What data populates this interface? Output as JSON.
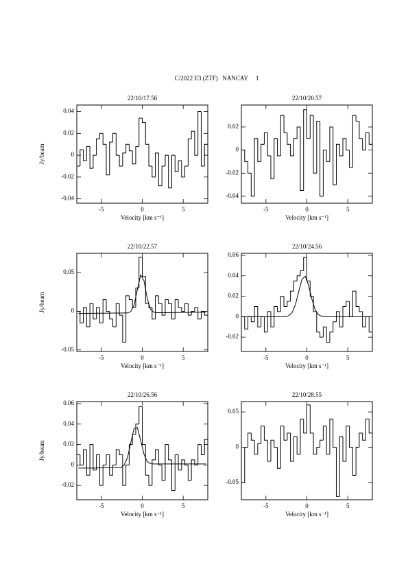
{
  "title": "C/2022 E3 (ZTF)   NANCAY     1",
  "chart_data": [
    {
      "type": "line",
      "title": "22/10/17.56",
      "xlabel": "Velocity [km s⁻¹]",
      "ylabel": "Jy/beam",
      "x": [
        -7.8,
        -7.4,
        -7.0,
        -6.6,
        -6.2,
        -5.8,
        -5.4,
        -5.0,
        -4.6,
        -4.2,
        -3.8,
        -3.4,
        -3.0,
        -2.6,
        -2.2,
        -1.8,
        -1.4,
        -1.0,
        -0.6,
        -0.2,
        0.2,
        0.6,
        1.0,
        1.4,
        1.8,
        2.2,
        2.6,
        3.0,
        3.4,
        3.8,
        4.2,
        4.6,
        5.0,
        5.4,
        5.8,
        6.2,
        6.6,
        7.0,
        7.4,
        7.8
      ],
      "xlim": [
        -8,
        8
      ],
      "xticks": [
        -5,
        0,
        5
      ],
      "ylim": [
        -0.044,
        0.046
      ],
      "yticks": [
        -0.04,
        -0.02,
        0,
        0.02,
        0.04
      ],
      "series": [
        {
          "color": "#000000",
          "drawstyle": "steps",
          "values": [
            -0.01,
            0.005,
            -0.005,
            0.008,
            -0.012,
            0.0,
            0.015,
            0.02,
            0.01,
            -0.018,
            0.012,
            0.02,
            0.0,
            -0.01,
            0.002,
            0.01,
            0.004,
            -0.008,
            0.008,
            0.034,
            0.03,
            0.01,
            -0.01,
            -0.02,
            0.002,
            -0.028,
            -0.01,
            0.0,
            -0.03,
            0.0,
            -0.015,
            -0.005,
            -0.02,
            -0.01,
            0.015,
            0.022,
            0.0,
            0.04,
            -0.01,
            0.01
          ]
        }
      ]
    },
    {
      "type": "line",
      "title": "22/10/20.57",
      "xlabel": "Velocity [km s⁻¹]",
      "x": [
        -7.8,
        -7.4,
        -7.0,
        -6.6,
        -6.2,
        -5.8,
        -5.4,
        -5.0,
        -4.6,
        -4.2,
        -3.8,
        -3.4,
        -3.0,
        -2.6,
        -2.2,
        -1.8,
        -1.4,
        -1.0,
        -0.6,
        -0.2,
        0.2,
        0.6,
        1.0,
        1.4,
        1.8,
        2.2,
        2.6,
        3.0,
        3.4,
        3.8,
        4.2,
        4.6,
        5.0,
        5.4,
        5.8,
        6.2,
        6.6,
        7.0,
        7.4,
        7.8
      ],
      "xlim": [
        -8,
        8
      ],
      "xticks": [
        -5,
        0,
        5
      ],
      "ylim": [
        -0.046,
        0.039
      ],
      "yticks": [
        -0.04,
        -0.02,
        0,
        0.02
      ],
      "series": [
        {
          "color": "#000000",
          "drawstyle": "steps",
          "values": [
            0.0,
            -0.01,
            -0.02,
            -0.04,
            0.01,
            -0.01,
            0.005,
            0.015,
            -0.005,
            -0.025,
            0.01,
            -0.005,
            0.03,
            0.015,
            0.005,
            -0.005,
            0.01,
            0.02,
            -0.035,
            0.035,
            0.01,
            0.03,
            -0.02,
            0.025,
            -0.04,
            0.0,
            -0.01,
            0.02,
            -0.03,
            0.005,
            -0.005,
            0.01,
            0.0,
            -0.015,
            0.03,
            0.025,
            0.01,
            0.0,
            0.015,
            0.005
          ]
        }
      ]
    },
    {
      "type": "line",
      "title": "22/10/22.57",
      "xlabel": "Velocity [km s⁻¹]",
      "ylabel": "Jy/beam",
      "x": [
        -7.8,
        -7.4,
        -7.0,
        -6.6,
        -6.2,
        -5.8,
        -5.4,
        -5.0,
        -4.6,
        -4.2,
        -3.8,
        -3.4,
        -3.0,
        -2.6,
        -2.2,
        -1.8,
        -1.4,
        -1.0,
        -0.6,
        -0.2,
        0.2,
        0.6,
        1.0,
        1.4,
        1.8,
        2.2,
        2.6,
        3.0,
        3.4,
        3.8,
        4.2,
        4.6,
        5.0,
        5.4,
        5.8,
        6.2,
        6.6,
        7.0,
        7.4,
        7.8
      ],
      "xlim": [
        -8,
        8
      ],
      "xticks": [
        -5,
        0,
        5
      ],
      "ylim": [
        -0.052,
        0.075
      ],
      "yticks": [
        -0.05,
        0,
        0.05
      ],
      "series": [
        {
          "color": "#000000",
          "drawstyle": "steps",
          "values": [
            0.0,
            -0.015,
            0.005,
            -0.02,
            0.01,
            -0.01,
            0.005,
            -0.015,
            0.015,
            0.0,
            -0.01,
            -0.02,
            0.01,
            -0.005,
            -0.04,
            0.02,
            0.015,
            0.005,
            0.03,
            0.07,
            0.045,
            0.01,
            0.005,
            -0.01,
            0.02,
            0.01,
            -0.005,
            0.015,
            0.01,
            -0.01,
            0.015,
            0.005,
            0.0,
            0.01,
            -0.005,
            0.0,
            0.005,
            -0.01,
            0.0,
            -0.005
          ]
        },
        {
          "color": "#000000",
          "drawstyle": "line",
          "values": [
            -0.0028,
            -0.0027,
            -0.0027,
            -0.0027,
            -0.0026,
            -0.0026,
            -0.0025,
            -0.0025,
            -0.0025,
            -0.0024,
            -0.0024,
            -0.0023,
            -0.0023,
            -0.0023,
            -0.0022,
            -0.0022,
            -0.0004,
            0.0078,
            0.0282,
            0.047,
            0.0398,
            0.0169,
            0.0025,
            -0.0012,
            -0.0018,
            -0.0018,
            -0.0017,
            -0.0017,
            -0.0017,
            -0.0016,
            -0.0016,
            -0.0015,
            -0.0015,
            -0.0015,
            -0.0014,
            -0.0014,
            -0.0013,
            -0.0013,
            -0.0013,
            -0.0012
          ]
        }
      ]
    },
    {
      "type": "line",
      "title": "22/10/24.56",
      "xlabel": "Velocity [km s⁻¹]",
      "x": [
        -7.8,
        -7.4,
        -7.0,
        -6.6,
        -6.2,
        -5.8,
        -5.4,
        -5.0,
        -4.6,
        -4.2,
        -3.8,
        -3.4,
        -3.0,
        -2.6,
        -2.2,
        -1.8,
        -1.4,
        -1.0,
        -0.6,
        -0.2,
        0.2,
        0.6,
        1.0,
        1.4,
        1.8,
        2.2,
        2.6,
        3.0,
        3.4,
        3.8,
        4.2,
        4.6,
        5.0,
        5.4,
        5.8,
        6.2,
        6.6,
        7.0,
        7.4,
        7.8
      ],
      "xlim": [
        -8,
        8
      ],
      "xticks": [
        -5,
        0,
        5
      ],
      "ylim": [
        -0.034,
        0.062
      ],
      "yticks": [
        -0.02,
        0,
        0.02,
        0.04,
        0.06
      ],
      "series": [
        {
          "color": "#000000",
          "drawstyle": "steps",
          "values": [
            0.0,
            -0.012,
            0.0,
            -0.005,
            0.01,
            -0.01,
            0.0,
            -0.015,
            0.005,
            -0.01,
            0.01,
            0.005,
            0.02,
            0.01,
            0.015,
            0.025,
            0.035,
            0.04,
            0.045,
            0.058,
            0.035,
            0.02,
            0.005,
            -0.015,
            -0.02,
            -0.01,
            -0.025,
            -0.015,
            -0.005,
            0.005,
            -0.01,
            0.01,
            0.015,
            0.0,
            0.025,
            0.01,
            0.005,
            -0.01,
            0.0,
            -0.015
          ]
        },
        {
          "color": "#000000",
          "drawstyle": "line",
          "values": [
            0,
            0,
            0,
            0,
            0,
            0,
            0,
            0,
            0,
            0,
            0,
            0,
            0,
            0,
            0.001,
            0.004,
            0.0117,
            0.0243,
            0.0365,
            0.0396,
            0.031,
            0.0175,
            0.0071,
            0.0021,
            0.0004,
            0,
            0,
            0,
            0,
            0,
            0,
            0,
            0,
            0,
            0,
            0,
            0,
            0,
            0,
            0
          ]
        }
      ]
    },
    {
      "type": "line",
      "title": "22/10/26.56",
      "xlabel": "Velocity [km s⁻¹]",
      "ylabel": "Jy/beam",
      "x": [
        -7.8,
        -7.4,
        -7.0,
        -6.6,
        -6.2,
        -5.8,
        -5.4,
        -5.0,
        -4.6,
        -4.2,
        -3.8,
        -3.4,
        -3.0,
        -2.6,
        -2.2,
        -1.8,
        -1.4,
        -1.0,
        -0.6,
        -0.2,
        0.2,
        0.6,
        1.0,
        1.4,
        1.8,
        2.2,
        2.6,
        3.0,
        3.4,
        3.8,
        4.2,
        4.6,
        5.0,
        5.4,
        5.8,
        6.2,
        6.6,
        7.0,
        7.4,
        7.8
      ],
      "xlim": [
        -8,
        8
      ],
      "xticks": [
        -5,
        0,
        5
      ],
      "ylim": [
        -0.034,
        0.062
      ],
      "yticks": [
        -0.02,
        0,
        0.02,
        0.04,
        0.06
      ],
      "series": [
        {
          "color": "#000000",
          "drawstyle": "steps",
          "values": [
            0.01,
            0.0,
            0.015,
            -0.01,
            0.02,
            -0.005,
            0.01,
            -0.02,
            0.0,
            0.01,
            -0.01,
            0.0,
            0.015,
            0.01,
            -0.02,
            0.0,
            0.02,
            0.03,
            0.04,
            0.057,
            0.02,
            -0.01,
            -0.02,
            0.005,
            0.015,
            0.0,
            -0.015,
            0.02,
            0.005,
            -0.025,
            0.01,
            -0.005,
            0.005,
            0.0,
            -0.015,
            0.005,
            0.0,
            0.02,
            0.01,
            0.025
          ]
        },
        {
          "color": "#000000",
          "drawstyle": "line",
          "values": [
            -0.003,
            -0.003,
            -0.003,
            -0.003,
            -0.003,
            -0.003,
            -0.0029,
            -0.0029,
            -0.0028,
            -0.0028,
            -0.0027,
            -0.0026,
            -0.0026,
            -0.0025,
            0.0001,
            0.0075,
            0.022,
            0.0358,
            0.0365,
            0.024,
            0.0108,
            0.0033,
            0.0012,
            0.001,
            0.001,
            0.001,
            0.001,
            0.001,
            0.001,
            0.001,
            0.001,
            0.001,
            0.001,
            0.001,
            0.001,
            0.001,
            0.001,
            0.001,
            0.001,
            0.001
          ]
        }
      ]
    },
    {
      "type": "line",
      "title": "22/10/28.55",
      "xlabel": "Velocity [km s⁻¹]",
      "x": [
        -7.8,
        -7.4,
        -7.0,
        -6.6,
        -6.2,
        -5.8,
        -5.4,
        -5.0,
        -4.6,
        -4.2,
        -3.8,
        -3.4,
        -3.0,
        -2.6,
        -2.2,
        -1.8,
        -1.4,
        -1.0,
        -0.6,
        -0.2,
        0.2,
        0.6,
        1.0,
        1.4,
        1.8,
        2.2,
        2.6,
        3.0,
        3.4,
        3.8,
        4.2,
        4.6,
        5.0,
        5.4,
        5.8,
        6.2,
        6.6,
        7.0,
        7.4,
        7.8
      ],
      "xlim": [
        -8,
        8
      ],
      "xticks": [
        -5,
        0,
        5
      ],
      "ylim": [
        -0.0745,
        0.0647
      ],
      "yticks": [
        -0.05,
        0,
        0.05
      ],
      "series": [
        {
          "color": "#000000",
          "drawstyle": "steps",
          "values": [
            -0.05,
            0.0,
            0.02,
            0.01,
            -0.01,
            0.005,
            0.03,
            0.01,
            -0.02,
            0.01,
            0.0,
            -0.03,
            0.03,
            0.01,
            0.02,
            -0.02,
            0.015,
            -0.01,
            0.04,
            0.02,
            0.06,
            0.02,
            -0.01,
            0.0,
            0.01,
            0.03,
            -0.01,
            0.04,
            0.0,
            -0.07,
            0.015,
            -0.02,
            0.03,
            0.0,
            -0.04,
            0.0,
            0.02,
            0.01,
            0.04,
            0.02
          ]
        }
      ]
    }
  ]
}
